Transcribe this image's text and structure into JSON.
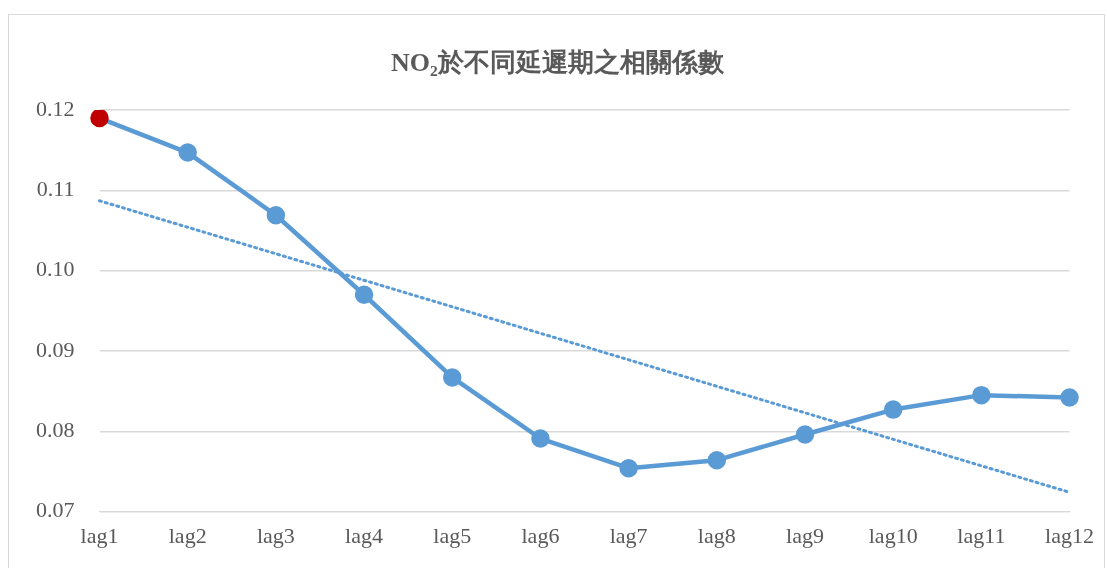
{
  "chart_data": {
    "type": "line",
    "title": "NO₂於不同延遲期之相關係數",
    "categories": [
      "lag1",
      "lag2",
      "lag3",
      "lag4",
      "lag5",
      "lag6",
      "lag7",
      "lag8",
      "lag9",
      "lag10",
      "lag11",
      "lag12"
    ],
    "series": [
      {
        "color": "#5b9bd5",
        "colors": [
          "#c00000",
          "#5b9bd5",
          "#5b9bd5",
          "#5b9bd5",
          "#5b9bd5",
          "#5b9bd5",
          "#5b9bd5",
          "#5b9bd5",
          "#5b9bd5",
          "#5b9bd5",
          "#5b9bd5",
          "#5b9bd5"
        ],
        "values": [
          0.119,
          0.1147,
          0.1069,
          0.097,
          0.0867,
          0.0791,
          0.0754,
          0.0764,
          0.0796,
          0.0827,
          0.0845,
          0.0842
        ],
        "marker": "circle",
        "line_style": "solid"
      },
      {
        "type": "line",
        "color": "#5b9bd5",
        "x": [
          "lag1",
          "lag12"
        ],
        "values": [
          0.1087,
          0.0724
        ],
        "marker": "none",
        "line_style": "dotted"
      }
    ],
    "ylim": [
      0.07,
      0.12
    ],
    "yticks": [
      0.07,
      0.08,
      0.09,
      {
        "value": 0.1,
        "label": "0.10"
      },
      0.11,
      0.12
    ],
    "grid": "y",
    "legend": false
  }
}
